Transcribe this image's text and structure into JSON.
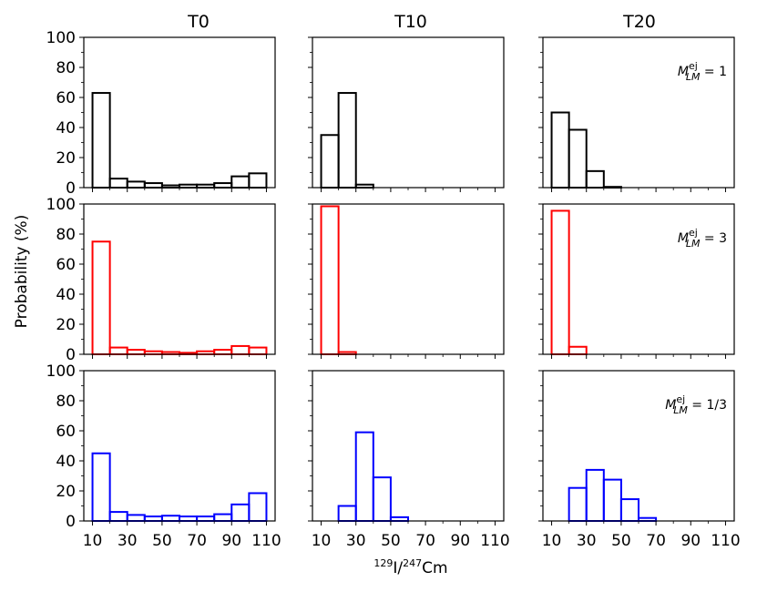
{
  "chart_data": {
    "type": "bar",
    "layout": "3x3 grid of histograms",
    "column_titles": [
      "T0",
      "T10",
      "T20"
    ],
    "xlabel": {
      "sup1": "129",
      "main1": "I/",
      "sup2": "247",
      "main2": "Cm"
    },
    "ylabel": "Probability (%)",
    "ylim": [
      0,
      100
    ],
    "xlim": [
      5,
      115
    ],
    "yticks": [
      "0",
      "20",
      "40",
      "60",
      "80",
      "100"
    ],
    "xticks": [
      "10",
      "30",
      "50",
      "70",
      "90",
      "110"
    ],
    "xtick_values": [
      10,
      30,
      50,
      70,
      90,
      110
    ],
    "ytick_values": [
      0,
      20,
      40,
      60,
      80,
      100
    ],
    "bin_edges": [
      10,
      20,
      30,
      40,
      50,
      60,
      70,
      80,
      90,
      100,
      110
    ],
    "rows": [
      {
        "color": "#000000",
        "annotation": {
          "prefix": "M",
          "sup": "ej",
          "sub": "LM",
          "value": " = 1"
        },
        "panels": [
          {
            "column": "T0",
            "values": [
              63,
              6,
              4,
              3,
              1.5,
              2,
              2,
              3,
              7.5,
              9.5
            ]
          },
          {
            "column": "T10",
            "values": [
              35,
              63,
              2,
              0,
              0,
              0,
              0,
              0,
              0,
              0
            ]
          },
          {
            "column": "T20",
            "values": [
              50,
              38.5,
              11,
              0.5,
              0,
              0,
              0,
              0,
              0,
              0
            ]
          }
        ]
      },
      {
        "color": "#ff0000",
        "annotation": {
          "prefix": "M",
          "sup": "ej",
          "sub": "LM",
          "value": " = 3"
        },
        "panels": [
          {
            "column": "T0",
            "values": [
              75,
              4.5,
              3,
              2,
              1.5,
              1,
              2,
              3,
              5.5,
              4.5
            ]
          },
          {
            "column": "T10",
            "values": [
              98.5,
              1.5,
              0,
              0,
              0,
              0,
              0,
              0,
              0,
              0
            ]
          },
          {
            "column": "T20",
            "values": [
              95.5,
              5,
              0,
              0,
              0,
              0,
              0,
              0,
              0,
              0
            ]
          }
        ]
      },
      {
        "color": "#0000ff",
        "annotation": {
          "prefix": "M",
          "sup": "ej",
          "sub": "LM",
          "value": " = 1/3"
        },
        "panels": [
          {
            "column": "T0",
            "values": [
              45,
              6,
              4,
              3,
              3.5,
              3,
              3,
              4.5,
              11,
              18.5
            ]
          },
          {
            "column": "T10",
            "values": [
              0,
              10,
              59,
              29,
              2.5,
              0,
              0,
              0,
              0,
              0
            ]
          },
          {
            "column": "T20",
            "values": [
              0,
              22,
              34,
              27.5,
              14.5,
              2,
              0,
              0,
              0,
              0
            ]
          }
        ]
      }
    ]
  }
}
